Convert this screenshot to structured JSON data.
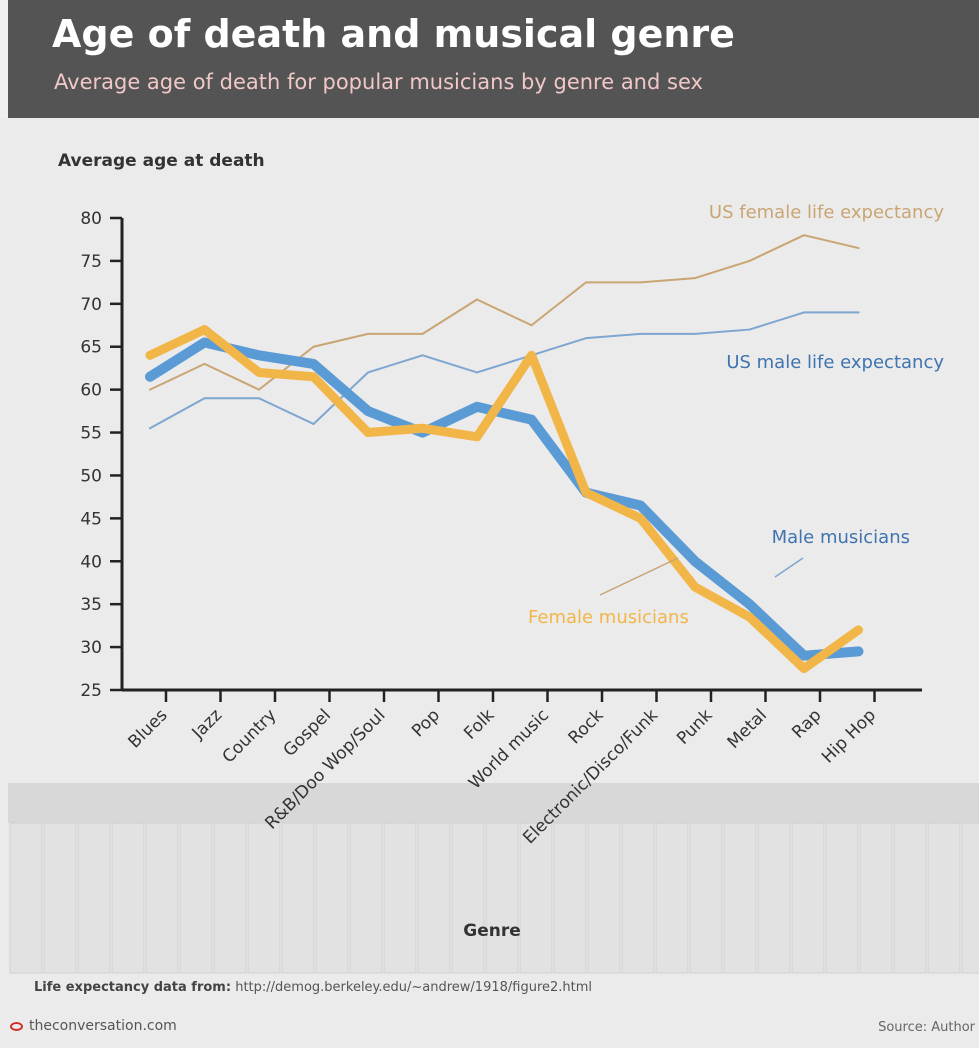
{
  "header": {
    "title": "Age of death and musical genre",
    "subtitle": "Average age of death for popular musicians by genre and sex"
  },
  "colors": {
    "male": "#5b9bd5",
    "female": "#f2b648",
    "us_male": "#7ea6d0",
    "us_female": "#c9a573",
    "header_bg": "#545454"
  },
  "chart_data": {
    "type": "line",
    "ylabel": "Average age at death",
    "xlabel": "Genre",
    "ylim": [
      25,
      80
    ],
    "yticks": [
      "80",
      "75",
      "70",
      "65",
      "60",
      "55",
      "50",
      "45",
      "40",
      "35",
      "30",
      "25"
    ],
    "categories": [
      "Blues",
      "Jazz",
      "Country",
      "Gospel",
      "R&B/Doo Wop/Soul",
      "Pop",
      "Folk",
      "World music",
      "Rock",
      "Electronic/Disco/Funk",
      "Punk",
      "Metal",
      "Rap",
      "Hip Hop"
    ],
    "series": [
      {
        "name": "Male musicians",
        "values": [
          61.5,
          65.5,
          64,
          63,
          57.5,
          55,
          58,
          56.5,
          48,
          46.5,
          40,
          35,
          29,
          29.5
        ]
      },
      {
        "name": "Female musicians",
        "values": [
          64,
          67,
          62,
          61.5,
          55,
          55.5,
          54.5,
          64,
          48,
          45,
          37,
          33.5,
          27.5,
          32
        ]
      },
      {
        "name": "US male life expectancy",
        "values": [
          55.5,
          59,
          59,
          56,
          62,
          64,
          62,
          64,
          66,
          66.5,
          66.5,
          67,
          69,
          69
        ]
      },
      {
        "name": "US female life expectancy",
        "values": [
          60,
          63,
          60,
          65,
          66.5,
          66.5,
          70.5,
          67.5,
          72.5,
          72.5,
          73,
          75,
          78,
          76.5
        ]
      }
    ]
  },
  "footer": {
    "note_label": "Life expectancy data from:",
    "note_url": "http://demog.berkeley.edu/~andrew/1918/figure2.html",
    "brand": "theconversation.com",
    "source": "Source: Author"
  }
}
